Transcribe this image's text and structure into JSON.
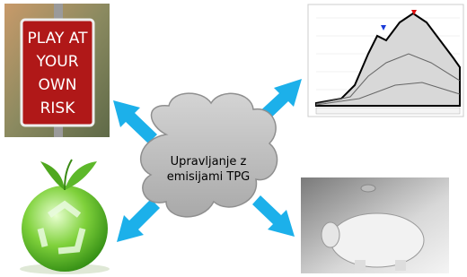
{
  "center": {
    "lines": [
      "Upravljanje z",
      "emisijami TPG"
    ]
  },
  "sign": {
    "lines": [
      "PLAY AT",
      "YOUR",
      "OWN",
      "RISK"
    ]
  }
}
